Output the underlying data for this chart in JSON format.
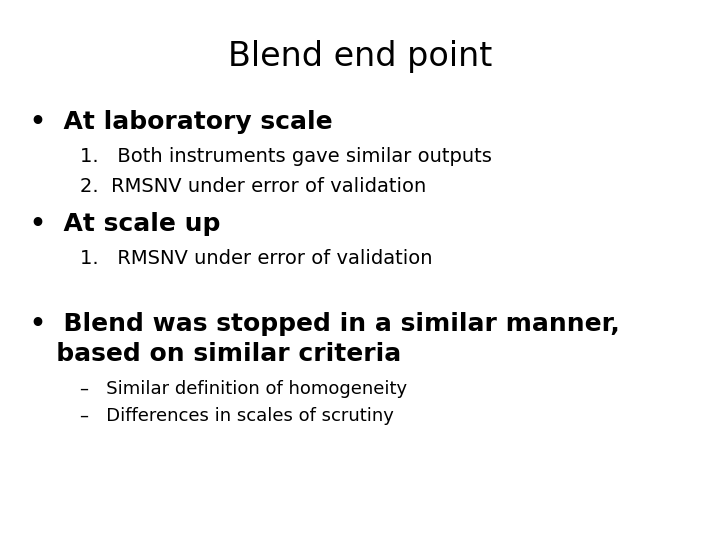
{
  "title": "Blend end point",
  "background_color": "#ffffff",
  "text_color": "#000000",
  "title_fontsize": 24,
  "title_fontweight": "normal",
  "bullet1_text": "•  At laboratory scale",
  "bullet1_fontsize": 18,
  "bullet1_fontweight": "bold",
  "sub1_1_text": "1.   Both instruments gave similar outputs",
  "sub1_2_text": "2.  RMSNV under error of validation",
  "sub_fontsize": 14,
  "sub_fontweight": "normal",
  "bullet2_text": "•  At scale up",
  "bullet2_fontsize": 18,
  "bullet2_fontweight": "bold",
  "sub2_1_text": "1.   RMSNV under error of validation",
  "bullet3_text": "•  Blend was stopped in a similar manner,",
  "bullet3b_text": "   based on similar criteria",
  "bullet3_fontsize": 18,
  "bullet3_fontweight": "bold",
  "sub3_1_text": "–   Similar definition of homogeneity",
  "sub3_2_text": "–   Differences in scales of scrutiny",
  "sub3_fontsize": 13
}
